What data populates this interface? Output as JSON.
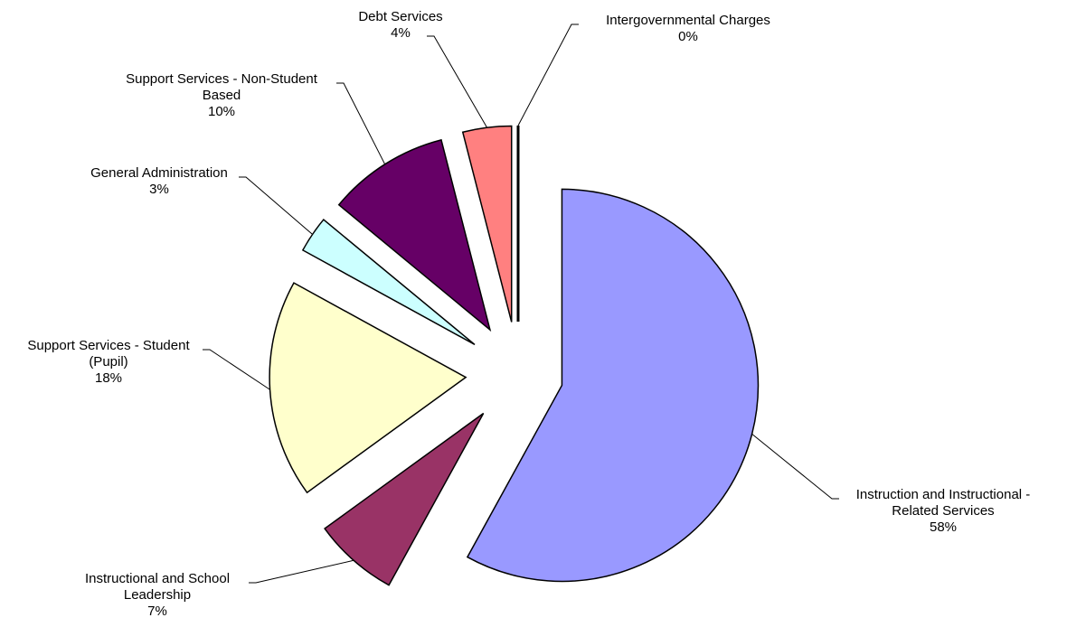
{
  "chart_data": {
    "type": "pie",
    "title": "",
    "legend": "none",
    "slices": [
      {
        "label_lines": [
          "Instruction and Instructional -",
          "Related Services"
        ],
        "value": 58,
        "value_label": "58%",
        "color": "#9999ff"
      },
      {
        "label_lines": [
          "Instructional and School",
          "Leadership"
        ],
        "value": 7,
        "value_label": "7%",
        "color": "#993366"
      },
      {
        "label_lines": [
          "Support Services - Student",
          "(Pupil)"
        ],
        "value": 18,
        "value_label": "18%",
        "color": "#ffffcc"
      },
      {
        "label_lines": [
          "General Administration"
        ],
        "value": 3,
        "value_label": "3%",
        "color": "#ccffff"
      },
      {
        "label_lines": [
          "Support Services - Non-Student",
          "Based"
        ],
        "value": 10,
        "value_label": "10%",
        "color": "#660066"
      },
      {
        "label_lines": [
          "Debt Services"
        ],
        "value": 4,
        "value_label": "4%",
        "color": "#ff8080"
      },
      {
        "label_lines": [
          "Intergovernmental Charges"
        ],
        "value": 0,
        "value_label": "0%",
        "color": "#0066cc"
      }
    ]
  }
}
